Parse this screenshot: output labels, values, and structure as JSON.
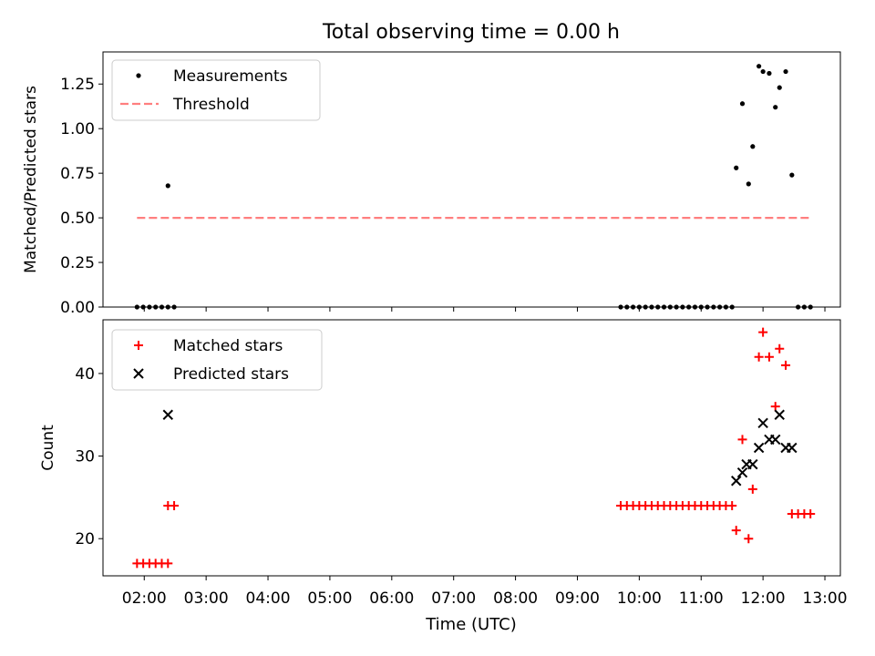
{
  "title": "Total observing time = 0.00 h",
  "xlabel": "Time (UTC)",
  "x_ticks": [
    "02:00",
    "03:00",
    "04:00",
    "05:00",
    "06:00",
    "07:00",
    "08:00",
    "09:00",
    "10:00",
    "11:00",
    "12:00",
    "13:00"
  ],
  "chart_data": [
    {
      "type": "scatter",
      "ylabel": "Matched/Predicted stars",
      "xlim": [
        "01:20",
        "13:15"
      ],
      "ylim": [
        0,
        1.43
      ],
      "y_ticks": [
        "0.00",
        "0.25",
        "0.50",
        "0.75",
        "1.00",
        "1.25"
      ],
      "legend_position": "top-left",
      "series": [
        {
          "name": "Measurements",
          "style": "dot",
          "color": "#000000",
          "points": [
            [
              "01:53",
              0
            ],
            [
              "01:59",
              0
            ],
            [
              "02:05",
              0
            ],
            [
              "02:11",
              0
            ],
            [
              "02:17",
              0
            ],
            [
              "02:23",
              0
            ],
            [
              "02:29",
              0
            ],
            [
              "02:23",
              0.68
            ],
            [
              "09:42",
              0
            ],
            [
              "09:48",
              0
            ],
            [
              "09:54",
              0
            ],
            [
              "10:00",
              0
            ],
            [
              "10:06",
              0
            ],
            [
              "10:12",
              0
            ],
            [
              "10:18",
              0
            ],
            [
              "10:24",
              0
            ],
            [
              "10:30",
              0
            ],
            [
              "10:36",
              0
            ],
            [
              "10:42",
              0
            ],
            [
              "10:48",
              0
            ],
            [
              "10:54",
              0
            ],
            [
              "11:00",
              0
            ],
            [
              "11:06",
              0
            ],
            [
              "11:12",
              0
            ],
            [
              "11:18",
              0
            ],
            [
              "11:24",
              0
            ],
            [
              "11:30",
              0
            ],
            [
              "11:34",
              0.78
            ],
            [
              "11:40",
              1.14
            ],
            [
              "11:46",
              0.69
            ],
            [
              "11:50",
              0.9
            ],
            [
              "11:56",
              1.35
            ],
            [
              "12:00",
              1.32
            ],
            [
              "12:06",
              1.31
            ],
            [
              "12:12",
              1.12
            ],
            [
              "12:16",
              1.23
            ],
            [
              "12:22",
              1.32
            ],
            [
              "12:28",
              0.74
            ],
            [
              "12:34",
              0
            ],
            [
              "12:40",
              0
            ],
            [
              "12:46",
              0
            ]
          ]
        },
        {
          "name": "Threshold",
          "style": "dashed-line",
          "color": "#ff7f7f",
          "points": [
            [
              "01:53",
              0.5
            ],
            [
              "12:46",
              0.5
            ]
          ]
        }
      ]
    },
    {
      "type": "scatter",
      "ylabel": "Count",
      "xlim": [
        "01:20",
        "13:15"
      ],
      "ylim": [
        15.5,
        46.5
      ],
      "y_ticks": [
        "20",
        "30",
        "40"
      ],
      "legend_position": "top-left",
      "series": [
        {
          "name": "Matched stars",
          "style": "plus",
          "color": "#ff0000",
          "points": [
            [
              "01:53",
              17
            ],
            [
              "01:59",
              17
            ],
            [
              "02:05",
              17
            ],
            [
              "02:11",
              17
            ],
            [
              "02:17",
              17
            ],
            [
              "02:23",
              17
            ],
            [
              "02:23",
              24
            ],
            [
              "02:29",
              24
            ],
            [
              "09:42",
              24
            ],
            [
              "09:48",
              24
            ],
            [
              "09:54",
              24
            ],
            [
              "10:00",
              24
            ],
            [
              "10:06",
              24
            ],
            [
              "10:12",
              24
            ],
            [
              "10:18",
              24
            ],
            [
              "10:24",
              24
            ],
            [
              "10:30",
              24
            ],
            [
              "10:36",
              24
            ],
            [
              "10:42",
              24
            ],
            [
              "10:48",
              24
            ],
            [
              "10:54",
              24
            ],
            [
              "11:00",
              24
            ],
            [
              "11:06",
              24
            ],
            [
              "11:12",
              24
            ],
            [
              "11:18",
              24
            ],
            [
              "11:24",
              24
            ],
            [
              "11:30",
              24
            ],
            [
              "11:34",
              21
            ],
            [
              "11:40",
              32
            ],
            [
              "11:46",
              20
            ],
            [
              "11:50",
              26
            ],
            [
              "11:56",
              42
            ],
            [
              "12:00",
              45
            ],
            [
              "12:06",
              42
            ],
            [
              "12:12",
              36
            ],
            [
              "12:16",
              43
            ],
            [
              "12:22",
              41
            ],
            [
              "12:28",
              23
            ],
            [
              "12:34",
              23
            ],
            [
              "12:40",
              23
            ],
            [
              "12:46",
              23
            ]
          ]
        },
        {
          "name": "Predicted stars",
          "style": "x",
          "color": "#000000",
          "points": [
            [
              "02:23",
              35
            ],
            [
              "11:34",
              27
            ],
            [
              "11:40",
              28
            ],
            [
              "11:44",
              29
            ],
            [
              "11:50",
              29
            ],
            [
              "11:56",
              31
            ],
            [
              "12:00",
              34
            ],
            [
              "12:06",
              32
            ],
            [
              "12:12",
              32
            ],
            [
              "12:16",
              35
            ],
            [
              "12:22",
              31
            ],
            [
              "12:28",
              31
            ]
          ]
        }
      ]
    }
  ]
}
